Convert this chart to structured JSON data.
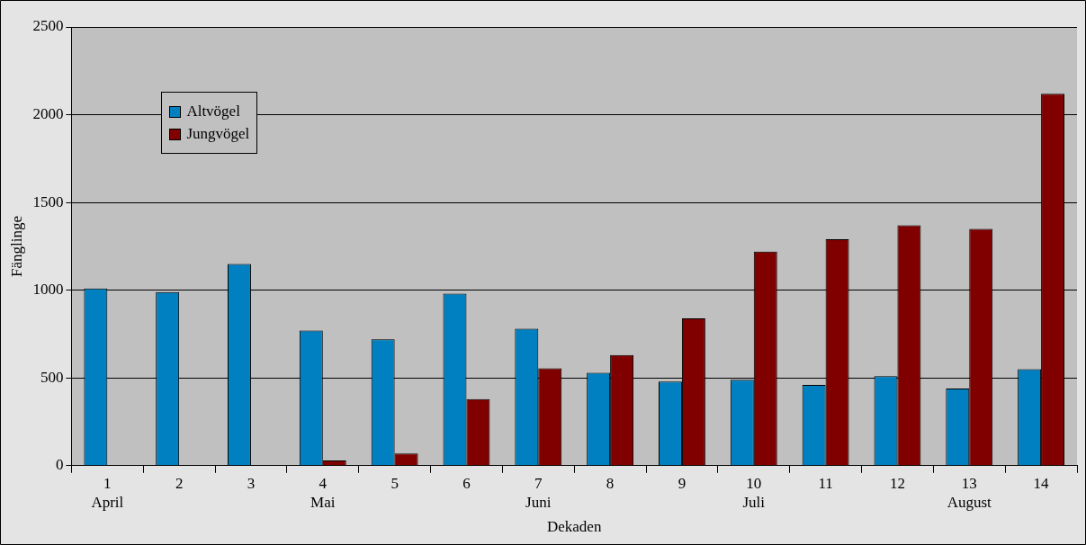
{
  "chart_data": {
    "type": "bar",
    "xlabel": "Dekaden",
    "ylabel": "Fänglinge",
    "categories": [
      "1\nApril",
      "2",
      "3",
      "4\nMai",
      "5",
      "6",
      "7\nJuni",
      "8",
      "9",
      "10\nJuli",
      "11",
      "12",
      "13\nAugust",
      "14"
    ],
    "series": [
      {
        "name": "Altvögel",
        "color": "#0080c0",
        "values": [
          1010,
          990,
          1150,
          770,
          720,
          980,
          780,
          530,
          480,
          490,
          460,
          510,
          440,
          550
        ]
      },
      {
        "name": "Jungvögel",
        "color": "#800000",
        "values": [
          0,
          0,
          0,
          30,
          70,
          380,
          555,
          630,
          840,
          1220,
          1290,
          1370,
          1350,
          2120
        ]
      }
    ],
    "ylim": [
      0,
      2500
    ],
    "yticks": [
      0,
      500,
      1000,
      1500,
      2000,
      2500
    ],
    "grid": "y",
    "legend": "top left"
  }
}
